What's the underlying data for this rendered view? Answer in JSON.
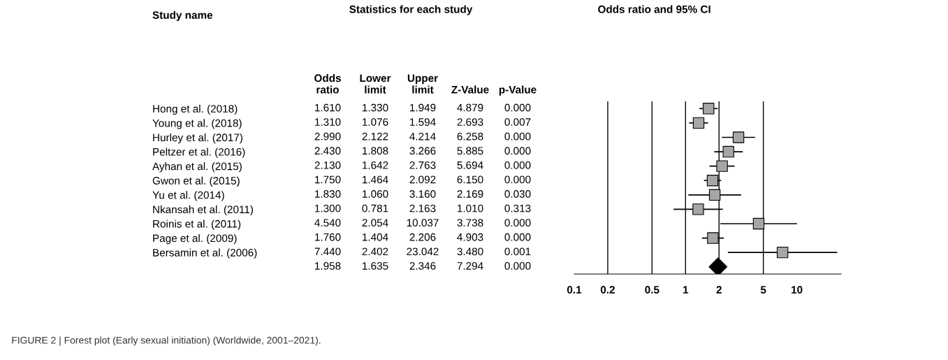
{
  "chart_data": [
    {
      "type": "heatmap",
      "title": "Statistics for each study",
      "ylabel": "Study name",
      "categories": [
        "Odds ratio",
        "Lower limit",
        "Upper limit",
        "Z-Value",
        "p-Value"
      ],
      "y_categories": [
        "Hong et al. (2018)",
        "Young et al. (2018)",
        "Hurley et al. (2017)",
        "Peltzer et al. (2016)",
        "Ayhan et al. (2015)",
        "Gwon et al. (2015)",
        "Yu et al. (2014)",
        "Nkansah et al. (2011)",
        "Roinis et al. (2011)",
        "Page et al. (2009)",
        "Bersamin et al. (2006)",
        null
      ],
      "cells": [
        [
          1.61,
          1.33,
          1.949,
          4.879,
          0.0
        ],
        [
          1.31,
          1.076,
          1.594,
          2.693,
          0.007
        ],
        [
          2.99,
          2.122,
          4.214,
          6.258,
          0.0
        ],
        [
          2.43,
          1.808,
          3.266,
          5.885,
          0.0
        ],
        [
          2.13,
          1.642,
          2.763,
          5.694,
          0.0
        ],
        [
          1.75,
          1.464,
          2.092,
          6.15,
          0.0
        ],
        [
          1.83,
          1.06,
          3.16,
          2.169,
          0.03
        ],
        [
          1.3,
          0.781,
          2.163,
          1.01,
          0.313
        ],
        [
          4.54,
          2.054,
          10.037,
          3.738,
          0.0
        ],
        [
          1.76,
          1.404,
          2.206,
          4.903,
          0.0
        ],
        [
          7.44,
          2.402,
          23.042,
          3.48,
          0.001
        ],
        [
          1.958,
          1.635,
          2.346,
          7.294,
          0.0
        ]
      ],
      "cell_labels": [
        [
          "1.610",
          "1.330",
          "1.949",
          "4.879",
          "0.000"
        ],
        [
          "1.310",
          "1.076",
          "1.594",
          "2.693",
          "0.007"
        ],
        [
          "2.990",
          "2.122",
          "4.214",
          "6.258",
          "0.000"
        ],
        [
          "2.430",
          "1.808",
          "3.266",
          "5.885",
          "0.000"
        ],
        [
          "2.130",
          "1.642",
          "2.763",
          "5.694",
          "0.000"
        ],
        [
          "1.750",
          "1.464",
          "2.092",
          "6.150",
          "0.000"
        ],
        [
          "1.830",
          "1.060",
          "3.160",
          "2.169",
          "0.030"
        ],
        [
          "1.300",
          "0.781",
          "2.163",
          "1.010",
          "0.313"
        ],
        [
          "4.540",
          "2.054",
          "10.037",
          "3.738",
          "0.000"
        ],
        [
          "1.760",
          "1.404",
          "2.206",
          "4.903",
          "0.000"
        ],
        [
          "7.440",
          "2.402",
          "23.042",
          "3.480",
          "0.001"
        ],
        [
          "1.958",
          "1.635",
          "2.346",
          "7.294",
          "0.000"
        ]
      ],
      "annotations": [
        "FIGURE 2 | Forest plot (Early sexual initiation) (Worldwide, 2001–2021)."
      ]
    },
    {
      "type": "scatter",
      "title": "Odds ratio and 95% CI",
      "orientation": "horizontal",
      "categories": [
        null,
        null,
        null,
        null,
        null,
        null,
        null,
        null,
        null,
        null,
        null,
        null
      ],
      "series": [
        {
          "color": "#a6a6a6",
          "marker": "square",
          "values": [
            1.61,
            1.31,
            2.99,
            2.43,
            2.13,
            1.75,
            1.83,
            1.3,
            4.54,
            1.76,
            7.44,
            null
          ],
          "errors": [
            [
              1.33,
              1.949
            ],
            [
              1.076,
              1.594
            ],
            [
              2.122,
              4.214
            ],
            [
              1.808,
              3.266
            ],
            [
              1.642,
              2.763
            ],
            [
              1.464,
              2.092
            ],
            [
              1.06,
              3.16
            ],
            [
              0.781,
              2.163
            ],
            [
              2.054,
              10.037
            ],
            [
              1.404,
              2.206
            ],
            [
              2.402,
              23.042
            ],
            null
          ]
        },
        {
          "color": "#000000",
          "marker": "diamond",
          "values": [
            null,
            null,
            null,
            null,
            null,
            null,
            null,
            null,
            null,
            null,
            null,
            1.958
          ],
          "errors": [
            null,
            null,
            null,
            null,
            null,
            null,
            null,
            null,
            null,
            null,
            null,
            [
              1.635,
              2.346
            ]
          ]
        }
      ],
      "log": "x",
      "xlim": [
        0.1,
        25
      ],
      "xticks": [
        0.1,
        0.2,
        0.5,
        1,
        2,
        5,
        10
      ],
      "ref_lines": [
        {
          "axis": "x",
          "value": 0.2
        },
        {
          "axis": "x",
          "value": 0.5
        },
        {
          "axis": "x",
          "value": 1
        },
        {
          "axis": "x",
          "value": 2
        },
        {
          "axis": "x",
          "value": 5
        }
      ]
    }
  ]
}
